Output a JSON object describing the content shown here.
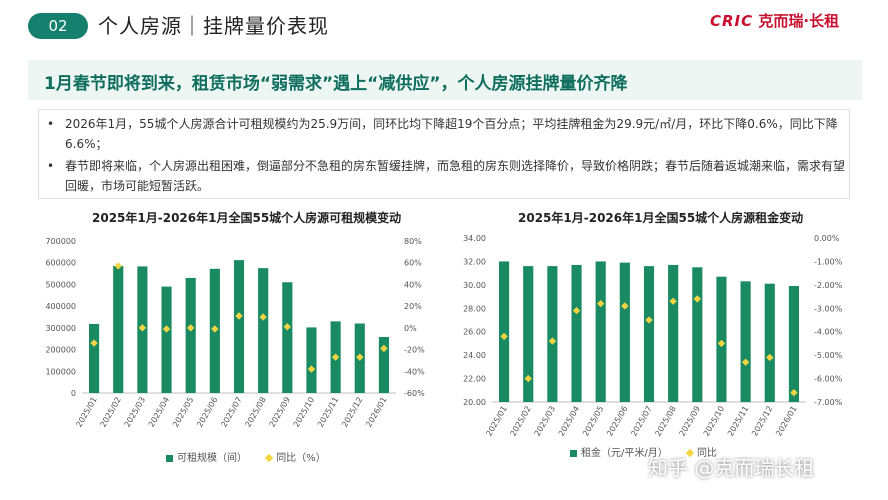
{
  "header": {
    "section_number": "02",
    "title": "个人房源｜挂牌量价表现",
    "logo_en": "CRIC",
    "logo_cn": "克而瑞·长租"
  },
  "subtitle": "1月春节即将到来，租赁市场“弱需求”遇上“减供应”，个人房源挂牌量价齐降",
  "bullets": [
    "2026年1月，55城个人房源合计可租规模约为25.9万间，同环比均下降超19个百分点；平均挂牌租金为29.9元/㎡/月，环比下降0.6%，同比下降6.6%；",
    "春节即将来临，个人房源出租困难，倒逼部分不急租的房东暂缓挂牌，而急租的房东则选择降价，导致价格阴跌；春节后随着返城潮来临，需求有望回暖，市场可能短暂活跃。"
  ],
  "watermark": "知乎 @克而瑞长租",
  "colors": {
    "bar": "#1a8a62",
    "point": "#f2d544",
    "accent": "#14806d"
  },
  "chart_data": [
    {
      "type": "bar",
      "title": "2025年1月-2026年1月全国55城个人房源可租规模变动",
      "categories": [
        "2025/01",
        "2025/02",
        "2025/03",
        "2025/04",
        "2025/05",
        "2025/06",
        "2025/07",
        "2025/08",
        "2025/09",
        "2025/10",
        "2025/11",
        "2025/12",
        "2026/01"
      ],
      "series": [
        {
          "name": "可租规模（间）",
          "type": "bar",
          "axis": "left",
          "values": [
            318000,
            585000,
            583000,
            490000,
            530000,
            572000,
            612000,
            575000,
            510000,
            302000,
            330000,
            320000,
            258000
          ]
        },
        {
          "name": "同比（%）",
          "type": "scatter",
          "axis": "right",
          "values": [
            -14,
            57,
            0,
            -1,
            0,
            -1,
            11,
            10,
            1,
            -38,
            -27,
            -27,
            -19
          ]
        }
      ],
      "y_left": {
        "min": 0,
        "max": 700000,
        "ticks": [
          "0",
          "100000",
          "200000",
          "300000",
          "400000",
          "500000",
          "600000",
          "700000"
        ]
      },
      "y_right": {
        "min": -60,
        "max": 80,
        "ticks": [
          "-60%",
          "-40%",
          "-20%",
          "0%",
          "20%",
          "40%",
          "60%",
          "80%"
        ]
      },
      "legend": "bottom",
      "grid": false
    },
    {
      "type": "bar",
      "title": "2025年1月-2026年1月全国55城个人房源租金变动",
      "categories": [
        "2025/01",
        "2025/02",
        "2025/03",
        "2025/04",
        "2025/05",
        "2025/06",
        "2025/07",
        "2025/08",
        "2025/09",
        "2025/10",
        "2025/11",
        "2025/12",
        "2026/01"
      ],
      "series": [
        {
          "name": "租金（元/平米/月）",
          "type": "bar",
          "axis": "left",
          "values": [
            32.0,
            31.6,
            31.6,
            31.7,
            32.0,
            31.9,
            31.6,
            31.7,
            31.5,
            30.7,
            30.3,
            30.1,
            29.9
          ]
        },
        {
          "name": "同比",
          "type": "scatter",
          "axis": "right",
          "values": [
            -4.2,
            -6.0,
            -4.4,
            -3.1,
            -2.8,
            -2.9,
            -3.5,
            -2.7,
            -2.6,
            -4.5,
            -5.3,
            -5.1,
            -6.6
          ]
        }
      ],
      "y_left": {
        "min": 20,
        "max": 34,
        "ticks": [
          "20.00",
          "22.00",
          "24.00",
          "26.00",
          "28.00",
          "30.00",
          "32.00",
          "34.00"
        ]
      },
      "y_right": {
        "min": -7,
        "max": 0,
        "ticks": [
          "-7.00%",
          "-6.00%",
          "-5.00%",
          "-4.00%",
          "-3.00%",
          "-2.00%",
          "-1.00%",
          "0.00%"
        ]
      },
      "legend": "bottom",
      "grid": false
    }
  ]
}
